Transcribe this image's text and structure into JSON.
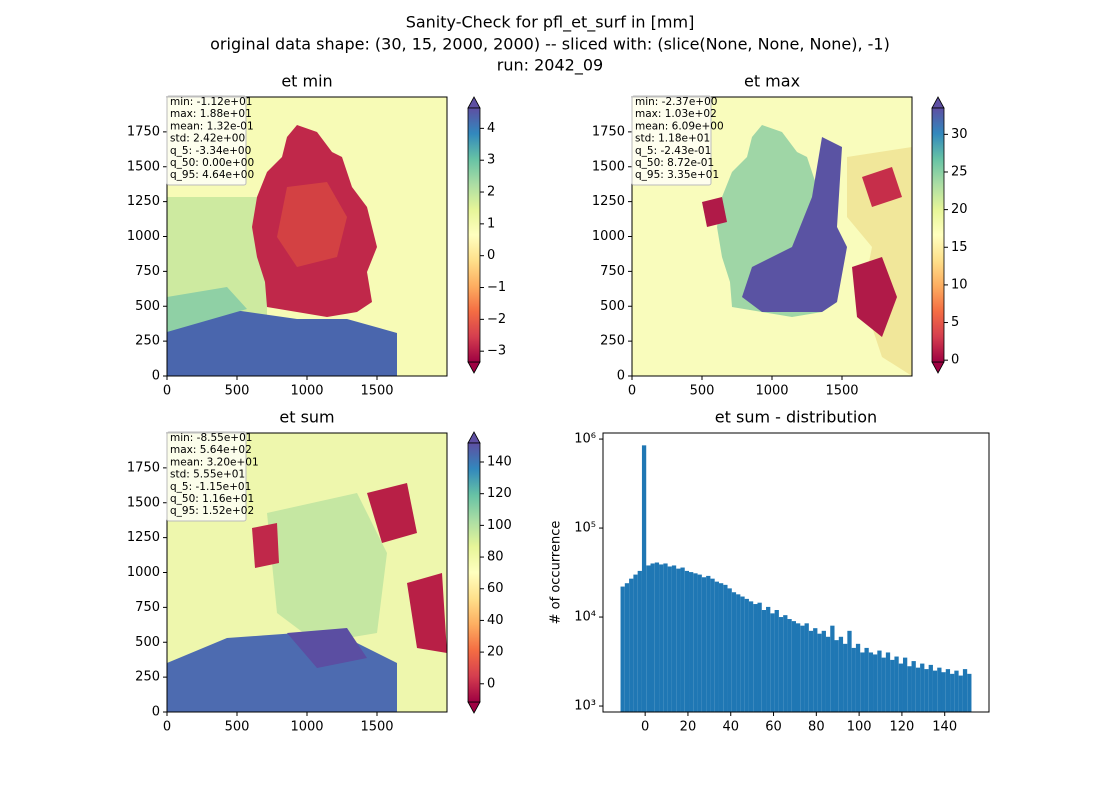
{
  "figure_title": [
    "Sanity-Check for pfl_et_surf in [mm]",
    "original data shape: (30, 15, 2000, 2000) -- sliced with: (slice(None, None, None), -1)",
    "run: 2042_09"
  ],
  "chart_data": [
    {
      "type": "heatmap",
      "title": "et min",
      "xlim": [
        0,
        2000
      ],
      "ylim": [
        0,
        2000
      ],
      "xticks": [
        0,
        500,
        1000,
        1500
      ],
      "yticks": [
        0,
        250,
        500,
        750,
        1000,
        1250,
        1500,
        1750
      ],
      "clim": [
        -3.34,
        4.64
      ],
      "cticks": [
        {
          "value": -3,
          "label": "−3"
        },
        {
          "value": -2,
          "label": "−2"
        },
        {
          "value": -1,
          "label": "−1"
        },
        0,
        1,
        2,
        3,
        4
      ],
      "stats": [
        "min: -1.12e+01",
        "max: 1.88e+01",
        "mean: 1.32e-01",
        "std: 2.42e+00",
        "q_5: -3.34e+00",
        "q_50: 0.00e+00",
        "q_95: 4.64e+00"
      ]
    },
    {
      "type": "heatmap",
      "title": "et max",
      "xlim": [
        0,
        2000
      ],
      "ylim": [
        0,
        2000
      ],
      "xticks": [
        0,
        500,
        1000,
        1500
      ],
      "yticks": [
        0,
        250,
        500,
        750,
        1000,
        1250,
        1500,
        1750
      ],
      "clim": [
        -0.243,
        33.5
      ],
      "cticks": [
        0,
        5,
        10,
        15,
        20,
        25,
        30
      ],
      "stats": [
        "min: -2.37e+00",
        "max: 1.03e+02",
        "mean: 6.09e+00",
        "std: 1.18e+01",
        "q_5: -2.43e-01",
        "q_50: 8.72e-01",
        "q_95: 3.35e+01"
      ]
    },
    {
      "type": "heatmap",
      "title": "et sum",
      "xlim": [
        0,
        2000
      ],
      "ylim": [
        0,
        2000
      ],
      "xticks": [
        0,
        500,
        1000,
        1500
      ],
      "yticks": [
        0,
        250,
        500,
        750,
        1000,
        1250,
        1500,
        1750
      ],
      "clim": [
        -11.5,
        152
      ],
      "cticks": [
        0,
        20,
        40,
        60,
        80,
        100,
        120,
        140
      ],
      "stats": [
        "min: -8.55e+01",
        "max: 5.64e+02",
        "mean: 3.20e+01",
        "std: 5.55e+01",
        "q_5: -1.15e+01",
        "q_50: 1.16e+01",
        "q_95: 1.52e+02"
      ]
    },
    {
      "type": "histogram",
      "title": "et sum - distribution",
      "ylabel": "# of occurrence",
      "color": "#1f77b4",
      "log_y": true,
      "xlim": [
        -19.7,
        160.7
      ],
      "xticks": [
        0,
        20,
        40,
        60,
        80,
        100,
        120,
        140
      ],
      "ylim": [
        857,
        1170000
      ],
      "yticks": [
        {
          "value": 1000,
          "label": "10³"
        },
        {
          "value": 10000,
          "label": "10⁴"
        },
        {
          "value": 100000,
          "label": "10⁵"
        },
        {
          "value": 1000000,
          "label": "10⁶"
        }
      ],
      "bins": [
        -11.5,
        -9.5,
        -7.5,
        -5.5,
        -3.5,
        -1.5,
        0.5,
        2.5,
        4.5,
        6.5,
        8.5,
        10.5,
        12.5,
        14.5,
        16.5,
        18.5,
        20.5,
        22.5,
        24.5,
        26.5,
        28.5,
        30.5,
        32.5,
        34.5,
        36.5,
        38.5,
        40.5,
        42.5,
        44.5,
        46.5,
        48.5,
        50.5,
        52.5,
        54.5,
        56.5,
        58.5,
        60.5,
        62.5,
        64.5,
        66.5,
        68.5,
        70.5,
        72.5,
        74.5,
        76.5,
        78.5,
        80.5,
        82.5,
        84.5,
        86.5,
        88.5,
        90.5,
        92.5,
        94.5,
        96.5,
        98.5,
        100.5,
        102.5,
        104.5,
        106.5,
        108.5,
        110.5,
        112.5,
        114.5,
        116.5,
        118.5,
        120.5,
        122.5,
        124.5,
        126.5,
        128.5,
        130.5,
        132.5,
        134.5,
        136.5,
        138.5,
        140.5,
        142.5,
        144.5,
        146.5,
        148.5,
        150.5,
        152.5
      ],
      "values": [
        22000,
        24000,
        27000,
        30000,
        33000,
        850000,
        38000,
        40000,
        41000,
        39000,
        40000,
        37000,
        38000,
        35000,
        36000,
        33000,
        32000,
        31000,
        30000,
        28000,
        29000,
        27000,
        25000,
        24000,
        23000,
        21000,
        19000,
        18000,
        17000,
        16000,
        15000,
        14000,
        14500,
        12000,
        13000,
        11000,
        12000,
        10000,
        10500,
        9500,
        9000,
        8500,
        8000,
        8500,
        7000,
        7500,
        6500,
        7000,
        6000,
        8000,
        5500,
        6000,
        5000,
        7000,
        4500,
        5000,
        4000,
        4500,
        4000,
        3800,
        4200,
        3500,
        4000,
        3300,
        3600,
        3000,
        3500,
        2800,
        3200,
        2700,
        3000,
        2600,
        2900,
        2500,
        2700,
        2400,
        2600,
        2300,
        2500,
        2200,
        2600,
        2300
      ]
    }
  ]
}
